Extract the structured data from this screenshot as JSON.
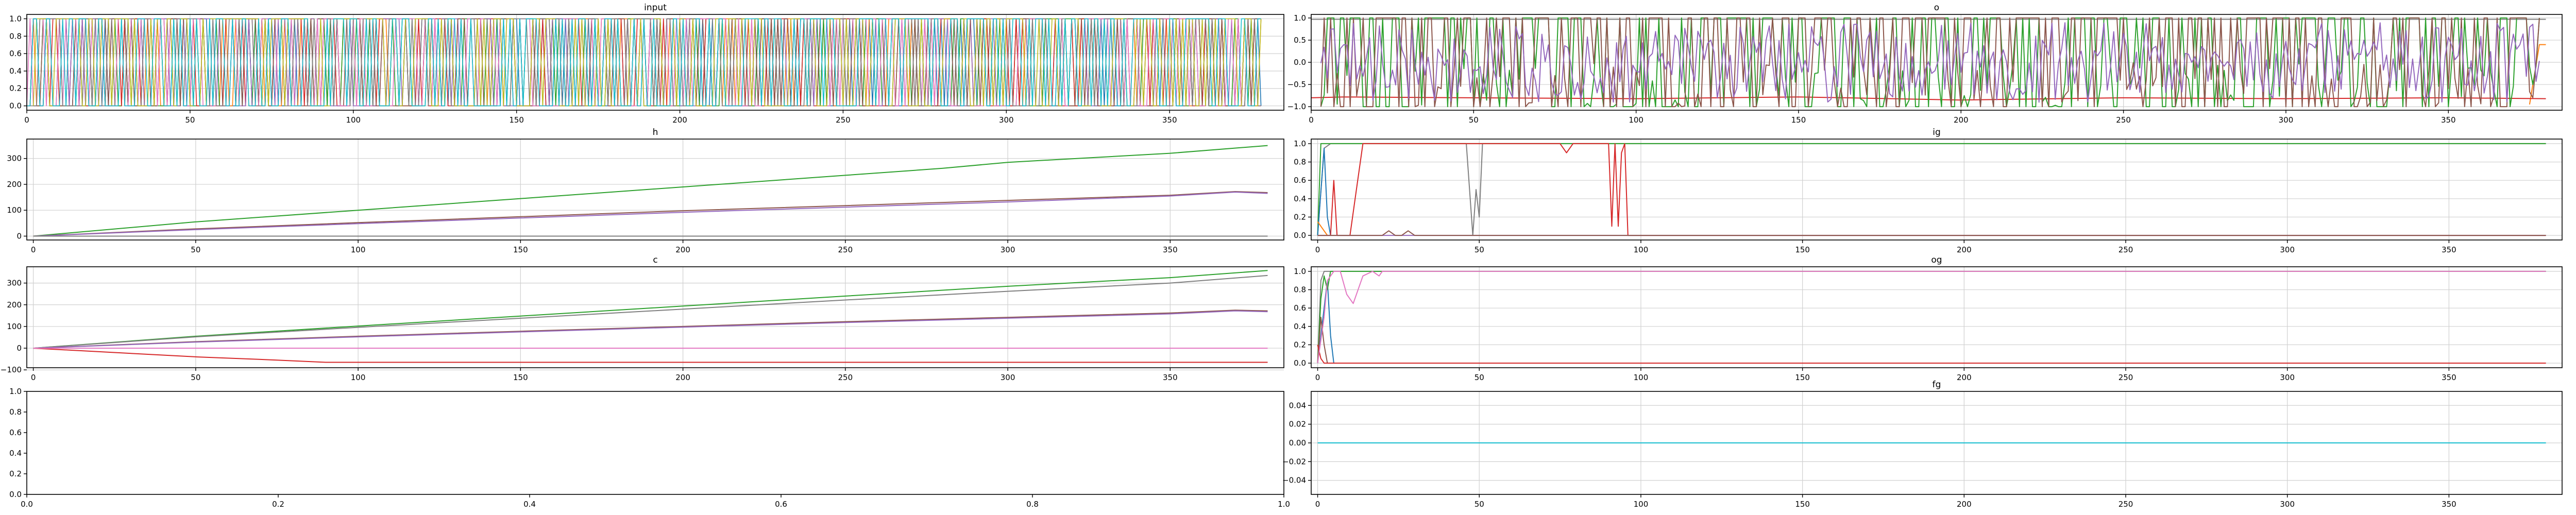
{
  "palette": [
    "#1f77b4",
    "#ff7f0e",
    "#2ca02c",
    "#d62728",
    "#9467bd",
    "#8c564b",
    "#e377c2",
    "#7f7f7f",
    "#bcbd22",
    "#17becf"
  ],
  "chart_data": [
    {
      "key": "input",
      "type": "line",
      "title": "input",
      "xlim": [
        0,
        385
      ],
      "ylim": [
        -0.05,
        1.05
      ],
      "xticks": [
        0,
        50,
        100,
        150,
        200,
        250,
        300,
        350
      ],
      "yticks": [
        0.0,
        0.2,
        0.4,
        0.6,
        0.8,
        1.0
      ],
      "tick_format": "1f",
      "grid": true,
      "pattern": "dense multi-series binary signal switching between 0 and 1 at every step",
      "series_count": 10,
      "series": []
    },
    {
      "key": "o",
      "type": "line",
      "title": "o",
      "xlim": [
        0,
        385
      ],
      "ylim": [
        -1.08,
        1.08
      ],
      "xticks": [
        0,
        50,
        100,
        150,
        200,
        250,
        300,
        350
      ],
      "yticks": [
        -1.0,
        -0.5,
        0.0,
        0.5,
        1.0
      ],
      "tick_format": "1f",
      "grid": true,
      "series": [
        {
          "color": "#7f7f7f",
          "points": [
            [
              0,
              0.97
            ],
            [
              5,
              0.97
            ],
            [
              380,
              0.97
            ]
          ]
        },
        {
          "color": "#ff7f0e",
          "points": [
            [
              375,
              -0.95
            ],
            [
              378,
              0.4
            ],
            [
              380,
              0.4
            ]
          ]
        },
        {
          "color": "#d62728",
          "points": [
            [
              0,
              -0.8
            ],
            [
              10,
              -0.78
            ],
            [
              50,
              -0.8
            ],
            [
              100,
              -0.82
            ],
            [
              150,
              -0.78
            ],
            [
              200,
              -0.85
            ],
            [
              250,
              -0.8
            ],
            [
              300,
              -0.82
            ],
            [
              350,
              -0.8
            ],
            [
              380,
              -0.82
            ]
          ]
        },
        {
          "color": "#2ca02c",
          "pattern": "oscillates between 1.0 and -1.0"
        },
        {
          "color": "#8c564b",
          "pattern": "oscillates between 1.0 and -1.0"
        },
        {
          "color": "#9467bd",
          "pattern": "oscillates between 0.9 and -0.9"
        }
      ]
    },
    {
      "key": "h",
      "type": "line",
      "title": "h",
      "xlim": [
        -2,
        385
      ],
      "ylim": [
        -15,
        375
      ],
      "xticks": [
        0,
        50,
        100,
        150,
        200,
        250,
        300,
        350
      ],
      "yticks": [
        0,
        100,
        200,
        300
      ],
      "tick_format": "0f",
      "grid": true,
      "series": [
        {
          "color": "#2ca02c",
          "points": [
            [
              0,
              0
            ],
            [
              50,
              55
            ],
            [
              100,
              100
            ],
            [
              150,
              145
            ],
            [
              200,
              190
            ],
            [
              250,
              235
            ],
            [
              280,
              262
            ],
            [
              300,
              285
            ],
            [
              350,
              320
            ],
            [
              380,
              350
            ]
          ]
        },
        {
          "color": "#8c564b",
          "points": [
            [
              0,
              0
            ],
            [
              50,
              28
            ],
            [
              100,
              52
            ],
            [
              150,
              75
            ],
            [
              200,
              98
            ],
            [
              250,
              118
            ],
            [
              300,
              138
            ],
            [
              350,
              158
            ],
            [
              370,
              172
            ],
            [
              380,
              168
            ]
          ]
        },
        {
          "color": "#9467bd",
          "points": [
            [
              0,
              0
            ],
            [
              50,
              25
            ],
            [
              100,
              48
            ],
            [
              150,
              70
            ],
            [
              200,
              92
            ],
            [
              250,
              112
            ],
            [
              300,
              132
            ],
            [
              350,
              155
            ],
            [
              370,
              170
            ],
            [
              380,
              165
            ]
          ]
        },
        {
          "color": "#d62728",
          "points": [
            [
              0,
              0
            ],
            [
              380,
              0
            ]
          ]
        },
        {
          "color": "#7f7f7f",
          "points": [
            [
              0,
              0
            ],
            [
              380,
              0
            ]
          ]
        }
      ]
    },
    {
      "key": "ig",
      "type": "line",
      "title": "ig",
      "xlim": [
        -2,
        385
      ],
      "ylim": [
        -0.05,
        1.05
      ],
      "xticks": [
        0,
        50,
        100,
        150,
        200,
        250,
        300,
        350
      ],
      "yticks": [
        0.0,
        0.2,
        0.4,
        0.6,
        0.8,
        1.0
      ],
      "tick_format": "1f",
      "grid": true,
      "series": [
        {
          "color": "#7f7f7f",
          "points": [
            [
              0,
              0
            ],
            [
              2,
              0.95
            ],
            [
              4,
              1.0
            ],
            [
              46,
              1.0
            ],
            [
              48,
              0
            ],
            [
              49,
              0.5
            ],
            [
              50,
              0.2
            ],
            [
              51,
              1.0
            ],
            [
              380,
              1.0
            ]
          ]
        },
        {
          "color": "#2ca02c",
          "points": [
            [
              0,
              0
            ],
            [
              1,
              1.0
            ],
            [
              380,
              1.0
            ]
          ]
        },
        {
          "color": "#1f77b4",
          "points": [
            [
              0,
              0
            ],
            [
              2,
              0.95
            ],
            [
              3,
              0.2
            ],
            [
              4,
              0
            ]
          ]
        },
        {
          "color": "#ff7f0e",
          "points": [
            [
              0,
              0.15
            ],
            [
              2,
              0.05
            ],
            [
              3,
              0
            ]
          ]
        },
        {
          "color": "#d62728",
          "points": [
            [
              0,
              0
            ],
            [
              4,
              0
            ],
            [
              5,
              0.6
            ],
            [
              6,
              0
            ],
            [
              10,
              0
            ],
            [
              12,
              0.5
            ],
            [
              14,
              1.0
            ],
            [
              75,
              1.0
            ],
            [
              77,
              0.9
            ],
            [
              79,
              1.0
            ],
            [
              90,
              1.0
            ],
            [
              91,
              0.1
            ],
            [
              92,
              1.0
            ],
            [
              93,
              0.1
            ],
            [
              94,
              0.9
            ],
            [
              95,
              1.0
            ],
            [
              96,
              0
            ],
            [
              380,
              0
            ]
          ]
        },
        {
          "color": "#9467bd",
          "points": [
            [
              0,
              0
            ],
            [
              380,
              0
            ]
          ]
        },
        {
          "color": "#8c564b",
          "points": [
            [
              0,
              0
            ],
            [
              20,
              0
            ],
            [
              22,
              0.05
            ],
            [
              24,
              0
            ],
            [
              26,
              0
            ],
            [
              28,
              0.05
            ],
            [
              30,
              0
            ],
            [
              380,
              0
            ]
          ]
        }
      ]
    },
    {
      "key": "c",
      "type": "line",
      "title": "c",
      "xlim": [
        -2,
        385
      ],
      "ylim": [
        -90,
        375
      ],
      "xticks": [
        0,
        50,
        100,
        150,
        200,
        250,
        300,
        350
      ],
      "yticks": [
        -100,
        0,
        100,
        200,
        300
      ],
      "tick_format": "0f",
      "grid": true,
      "series": [
        {
          "color": "#2ca02c",
          "points": [
            [
              0,
              0
            ],
            [
              50,
              55
            ],
            [
              100,
              102
            ],
            [
              150,
              148
            ],
            [
              200,
              194
            ],
            [
              250,
              240
            ],
            [
              300,
              285
            ],
            [
              350,
              325
            ],
            [
              380,
              358
            ]
          ]
        },
        {
          "color": "#7f7f7f",
          "points": [
            [
              0,
              0
            ],
            [
              50,
              52
            ],
            [
              100,
              96
            ],
            [
              150,
              138
            ],
            [
              200,
              180
            ],
            [
              250,
              222
            ],
            [
              300,
              262
            ],
            [
              350,
              300
            ],
            [
              380,
              335
            ]
          ]
        },
        {
          "color": "#8c564b",
          "points": [
            [
              0,
              0
            ],
            [
              50,
              30
            ],
            [
              100,
              55
            ],
            [
              150,
              78
            ],
            [
              200,
              100
            ],
            [
              250,
              122
            ],
            [
              300,
              142
            ],
            [
              350,
              162
            ],
            [
              370,
              175
            ],
            [
              380,
              172
            ]
          ]
        },
        {
          "color": "#9467bd",
          "points": [
            [
              0,
              0
            ],
            [
              50,
              28
            ],
            [
              100,
              52
            ],
            [
              150,
              75
            ],
            [
              200,
              97
            ],
            [
              250,
              118
            ],
            [
              300,
              138
            ],
            [
              350,
              158
            ],
            [
              370,
              172
            ],
            [
              380,
              168
            ]
          ]
        },
        {
          "color": "#d62728",
          "points": [
            [
              0,
              0
            ],
            [
              25,
              -20
            ],
            [
              50,
              -40
            ],
            [
              75,
              -55
            ],
            [
              90,
              -65
            ],
            [
              100,
              -65
            ],
            [
              380,
              -65
            ]
          ]
        },
        {
          "color": "#e377c2",
          "points": [
            [
              0,
              0
            ],
            [
              380,
              0
            ]
          ]
        }
      ]
    },
    {
      "key": "og",
      "type": "line",
      "title": "og",
      "xlim": [
        -2,
        385
      ],
      "ylim": [
        -0.05,
        1.05
      ],
      "xticks": [
        0,
        50,
        100,
        150,
        200,
        250,
        300,
        350
      ],
      "yticks": [
        0.0,
        0.2,
        0.4,
        0.6,
        0.8,
        1.0
      ],
      "tick_format": "1f",
      "grid": true,
      "series": [
        {
          "color": "#7f7f7f",
          "points": [
            [
              0,
              0
            ],
            [
              1,
              0.9
            ],
            [
              2,
              1.0
            ],
            [
              380,
              1.0
            ]
          ]
        },
        {
          "color": "#1f77b4",
          "points": [
            [
              0,
              0
            ],
            [
              2,
              0.6
            ],
            [
              3,
              0.9
            ],
            [
              4,
              0.3
            ],
            [
              5,
              0
            ]
          ]
        },
        {
          "color": "#2ca02c",
          "points": [
            [
              0,
              0
            ],
            [
              1,
              0.7
            ],
            [
              2,
              0.95
            ],
            [
              3,
              0.8
            ],
            [
              4,
              1.0
            ],
            [
              380,
              1.0
            ]
          ]
        },
        {
          "color": "#8c564b",
          "points": [
            [
              0,
              0
            ],
            [
              1,
              0.5
            ],
            [
              2,
              0.2
            ],
            [
              3,
              0
            ]
          ]
        },
        {
          "color": "#d62728",
          "points": [
            [
              0,
              0.2
            ],
            [
              1,
              0.05
            ],
            [
              2,
              0
            ],
            [
              380,
              0
            ]
          ]
        },
        {
          "color": "#e377c2",
          "points": [
            [
              0,
              0
            ],
            [
              2,
              0.5
            ],
            [
              3,
              0.9
            ],
            [
              5,
              1.0
            ],
            [
              7,
              1.0
            ],
            [
              9,
              0.75
            ],
            [
              10,
              0.7
            ],
            [
              11,
              0.65
            ],
            [
              14,
              0.95
            ],
            [
              17,
              1.0
            ],
            [
              19,
              0.95
            ],
            [
              20,
              1.0
            ],
            [
              380,
              1.0
            ]
          ]
        }
      ]
    },
    {
      "key": "empty",
      "type": "line",
      "title": "",
      "xlim": [
        0,
        1
      ],
      "ylim": [
        0,
        1
      ],
      "xticks": [
        0.0,
        0.2,
        0.4,
        0.6,
        0.8,
        1.0
      ],
      "yticks": [
        0.0,
        0.2,
        0.4,
        0.6,
        0.8,
        1.0
      ],
      "tick_format": "1f",
      "grid": false,
      "series": []
    },
    {
      "key": "fg",
      "type": "line",
      "title": "fg",
      "xlim": [
        -2,
        385
      ],
      "ylim": [
        -0.055,
        0.055
      ],
      "xticks": [
        0,
        50,
        100,
        150,
        200,
        250,
        300,
        350
      ],
      "yticks": [
        -0.04,
        -0.02,
        0.0,
        0.02,
        0.04
      ],
      "tick_format": "2f",
      "grid": true,
      "series": [
        {
          "color": "#17becf",
          "points": [
            [
              0,
              0
            ],
            [
              380,
              0
            ]
          ]
        }
      ]
    }
  ]
}
